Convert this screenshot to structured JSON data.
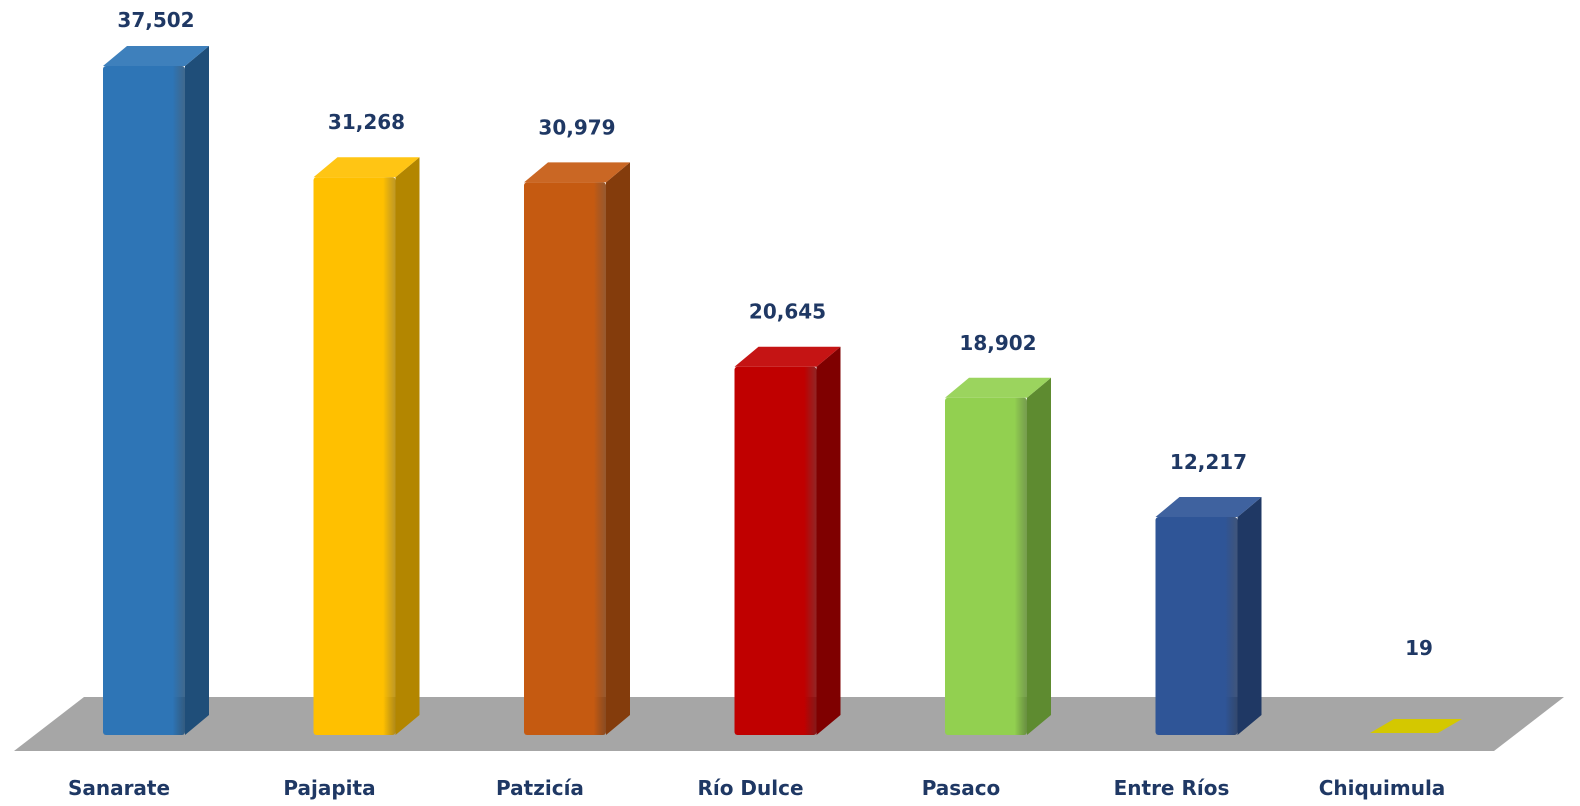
{
  "chart_data": {
    "type": "bar",
    "categories": [
      "Sanarate",
      "Pajapita",
      "Patzicía",
      "Río Dulce",
      "Pasaco",
      "Entre Ríos",
      "Chiquimula"
    ],
    "values": [
      37502,
      31268,
      30979,
      20645,
      18902,
      12217,
      19
    ],
    "value_labels": [
      "37,502",
      "31,268",
      "30,979",
      "20,645",
      "18,902",
      "12,217",
      "19"
    ],
    "title": "",
    "xlabel": "",
    "ylabel": "",
    "ylim": [
      0,
      37502
    ],
    "style": "3d-column",
    "grid": false,
    "legend": "none",
    "colors": [
      "#2e75b6",
      "#ffc000",
      "#c55a11",
      "#c00000",
      "#92d050",
      "#2f5597",
      "#d4c800"
    ],
    "side_colors": [
      "#1f4e79",
      "#b38600",
      "#843c0c",
      "#7f0000",
      "#5e8b30",
      "#1f3864",
      "#a89e00"
    ],
    "label_color": "#1f3864",
    "floor_color": "#a6a6a6"
  }
}
